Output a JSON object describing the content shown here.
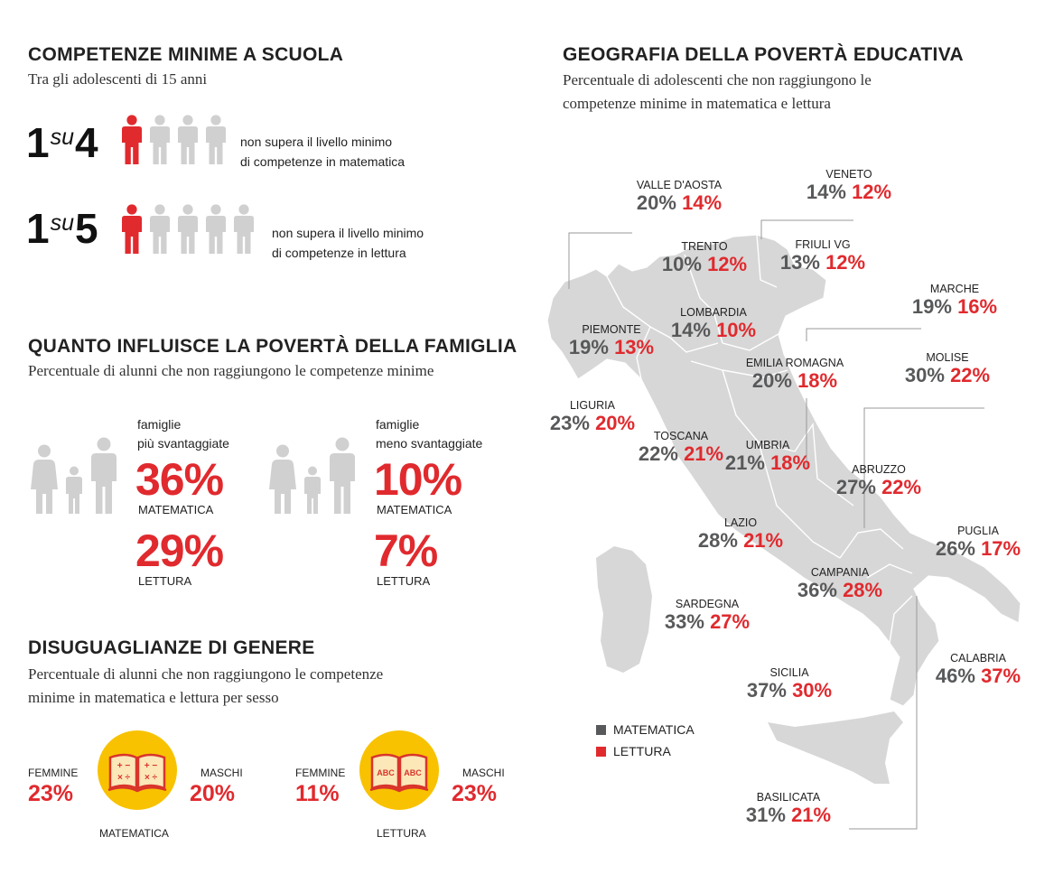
{
  "left": {
    "s1": {
      "title": "COMPETENZE MINIME A SCUOLA",
      "subtitle": "Tra gli adolescenti di 15 anni"
    },
    "math_stat": {
      "num": "1",
      "su": "su",
      "den": "4",
      "line1": "non supera il livello minimo",
      "line2": "di competenze in matematica"
    },
    "read_stat": {
      "num": "1",
      "su": "su",
      "den": "5",
      "line1": "non supera il livello minimo",
      "line2": "di competenze in lettura"
    },
    "s2": {
      "title": "QUANTO INFLUISCE LA POVERTÀ DELLA FAMIGLIA",
      "subtitle": "Percentuale di alunni che non raggiungono le competenze minime"
    },
    "disadv": {
      "l1": "famiglie",
      "l2": "più svantaggiate",
      "math": "36%",
      "math_label": "MATEMATICA",
      "read": "29%",
      "read_label": "LETTURA"
    },
    "adv": {
      "l1": "famiglie",
      "l2": "meno svantaggiate",
      "math": "10%",
      "math_label": "MATEMATICA",
      "read": "7%",
      "read_label": "LETTURA"
    },
    "s3": {
      "title": "DISUGUAGLIANZE DI GENERE",
      "sub1": "Percentuale di alunni che non raggiungono le competenze",
      "sub2": "minime in matematica e lettura per sesso"
    },
    "gender_math": {
      "f_label": "FEMMINE",
      "f_val": "23%",
      "m_label": "MASCHI",
      "m_val": "20%",
      "caption": "MATEMATICA",
      "book_glyphs": [
        "+ −",
        "× ÷"
      ]
    },
    "gender_read": {
      "f_label": "FEMMINE",
      "f_val": "11%",
      "m_label": "MASCHI",
      "m_val": "23%",
      "caption": "LETTURA",
      "book_glyphs": [
        "ABC",
        "ABC"
      ]
    }
  },
  "map": {
    "title": "GEOGRAFIA DELLA POVERTÀ EDUCATIVA",
    "sub1": "Percentuale di adolescenti che non raggiungono le",
    "sub2": "competenze minime in matematica e lettura",
    "legend": {
      "math": "MATEMATICA",
      "read": "LETTURA"
    },
    "colors": {
      "math": "#58595b",
      "read": "#e02a2e",
      "land": "#d7d7d7",
      "accent": "#e02a2e",
      "book_bg": "#f8c200"
    }
  },
  "chart_data": {
    "type": "table",
    "columns": [
      "MATEMATICA",
      "LETTURA"
    ],
    "regions": [
      {
        "name": "VALLE D'AOSTA",
        "math": "20%",
        "read": "14%"
      },
      {
        "name": "VENETO",
        "math": "14%",
        "read": "12%"
      },
      {
        "name": "TRENTO",
        "math": "10%",
        "read": "12%"
      },
      {
        "name": "FRIULI VG",
        "math": "13%",
        "read": "12%"
      },
      {
        "name": "MARCHE",
        "math": "19%",
        "read": "16%"
      },
      {
        "name": "PIEMONTE",
        "math": "19%",
        "read": "13%"
      },
      {
        "name": "LOMBARDIA",
        "math": "14%",
        "read": "10%"
      },
      {
        "name": "EMILIA ROMAGNA",
        "math": "20%",
        "read": "18%"
      },
      {
        "name": "MOLISE",
        "math": "30%",
        "read": "22%"
      },
      {
        "name": "LIGURIA",
        "math": "23%",
        "read": "20%"
      },
      {
        "name": "TOSCANA",
        "math": "22%",
        "read": "21%"
      },
      {
        "name": "UMBRIA",
        "math": "21%",
        "read": "18%"
      },
      {
        "name": "ABRUZZO",
        "math": "27%",
        "read": "22%"
      },
      {
        "name": "LAZIO",
        "math": "28%",
        "read": "21%"
      },
      {
        "name": "PUGLIA",
        "math": "26%",
        "read": "17%"
      },
      {
        "name": "CAMPANIA",
        "math": "36%",
        "read": "28%"
      },
      {
        "name": "SARDEGNA",
        "math": "33%",
        "read": "27%"
      },
      {
        "name": "CALABRIA",
        "math": "46%",
        "read": "37%"
      },
      {
        "name": "SICILIA",
        "math": "37%",
        "read": "30%"
      },
      {
        "name": "BASILICATA",
        "math": "31%",
        "read": "21%"
      }
    ]
  }
}
